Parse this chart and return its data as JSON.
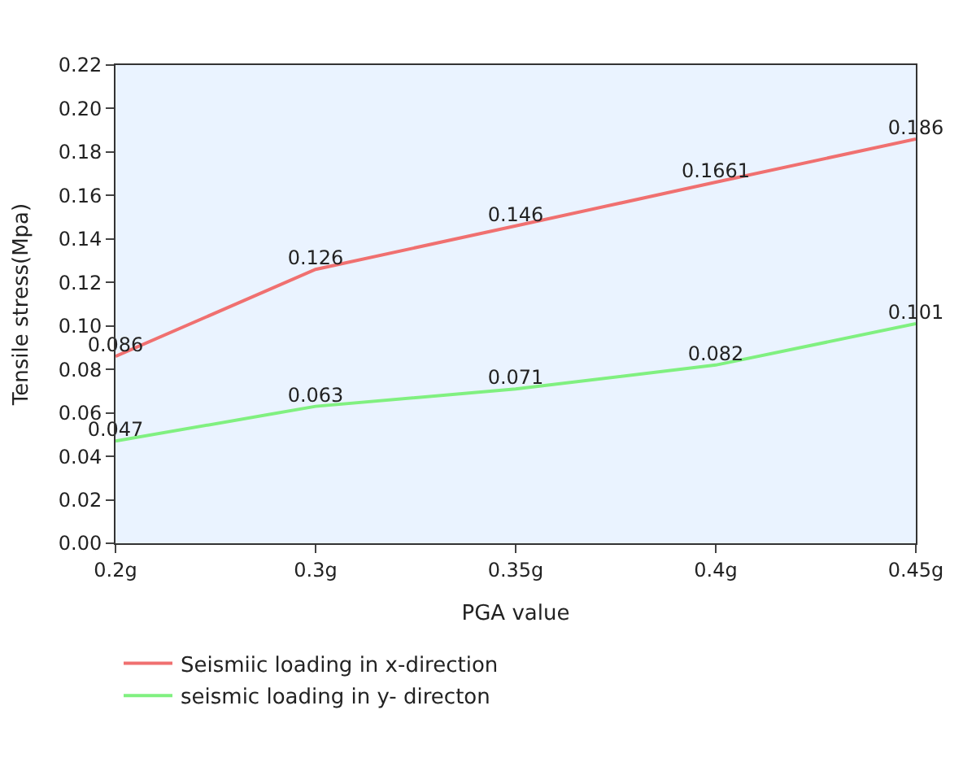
{
  "chart_data": {
    "type": "line",
    "xlabel": "PGA value",
    "ylabel": "Tensile stress(Mpa)",
    "categories": [
      "0.2g",
      "0.3g",
      "0.35g",
      "0.4g",
      "0.45g"
    ],
    "series": [
      {
        "name": "Seismiic loading in x-direction",
        "color": "#f07070",
        "values": [
          0.086,
          0.126,
          0.146,
          0.1661,
          0.186
        ]
      },
      {
        "name": "seismic loading in y- directon",
        "color": "#80f080",
        "values": [
          0.047,
          0.063,
          0.071,
          0.082,
          0.101
        ]
      }
    ],
    "ylim": [
      0,
      0.22
    ],
    "yticks": [
      {
        "value": 0,
        "label": "0.00"
      },
      {
        "value": 0.02,
        "label": "0.02"
      },
      {
        "value": 0.04,
        "label": "0.04"
      },
      {
        "value": 0.06,
        "label": "0.06"
      },
      {
        "value": 0.08,
        "label": "0.08"
      },
      {
        "value": 0.1,
        "label": "0.10"
      },
      {
        "value": 0.12,
        "label": "0.12"
      },
      {
        "value": 0.14,
        "label": "0.14"
      },
      {
        "value": 0.16,
        "label": "0.16"
      },
      {
        "value": 0.18,
        "label": "0.18"
      },
      {
        "value": 0.2,
        "label": "0.20"
      },
      {
        "value": 0.22,
        "label": "0.22"
      }
    ],
    "data_labels": true,
    "legend": "bottom",
    "grid": false,
    "marker": "none"
  }
}
